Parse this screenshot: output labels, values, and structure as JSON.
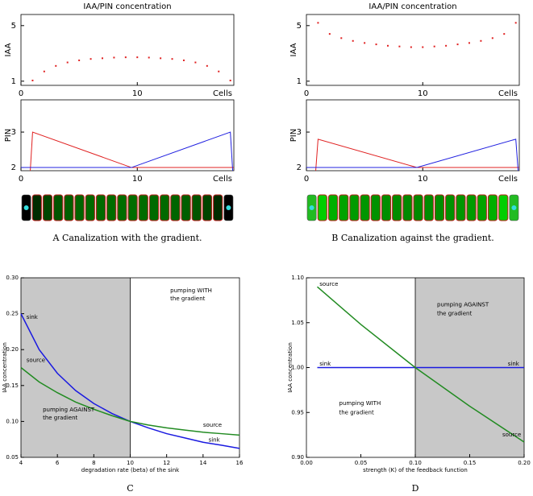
{
  "chart_data": [
    {
      "type": "scatter",
      "title": "IAA/PIN concentration",
      "ylabel": "IAA",
      "xlabel": "Cells",
      "caption": "A Canalization with the gradient.",
      "color": "#e02020",
      "x": [
        1,
        2,
        3,
        4,
        5,
        6,
        7,
        8,
        9,
        10,
        11,
        12,
        13,
        14,
        15,
        16,
        17,
        18
      ],
      "values": [
        1.05,
        1.7,
        2.1,
        2.35,
        2.5,
        2.6,
        2.65,
        2.7,
        2.72,
        2.72,
        2.7,
        2.65,
        2.6,
        2.5,
        2.35,
        2.1,
        1.7,
        1.05
      ],
      "xlim": [
        0,
        18.3
      ],
      "ylim": [
        0.7,
        5.8
      ],
      "xticks": [
        0,
        10
      ],
      "yticks": [
        1,
        5
      ]
    },
    {
      "type": "line",
      "ylabel": "PIN",
      "xlabel": "Cells",
      "series": [
        {
          "color": "#e02020",
          "x": [
            0.8,
            1,
            9.5,
            18.3
          ],
          "values": [
            1.91,
            3,
            2,
            2
          ]
        },
        {
          "color": "#2020e0",
          "x": [
            0,
            9.5,
            18,
            18.2
          ],
          "values": [
            2,
            2,
            3,
            1.91
          ]
        }
      ],
      "xlim": [
        0,
        18.3
      ],
      "ylim": [
        1.91,
        3.91
      ],
      "xticks": [
        0,
        10
      ],
      "yticks": [
        2,
        3
      ]
    },
    {
      "type": "scatter",
      "title": "IAA/PIN concentration",
      "ylabel": "IAA",
      "xlabel": "Cells",
      "caption": "B Canalization against the gradient.",
      "color": "#e02020",
      "x": [
        1,
        2,
        3,
        4,
        5,
        6,
        7,
        8,
        9,
        10,
        11,
        12,
        13,
        14,
        15,
        16,
        17,
        18
      ],
      "values": [
        5.2,
        4.4,
        4.1,
        3.9,
        3.75,
        3.65,
        3.55,
        3.5,
        3.45,
        3.45,
        3.5,
        3.55,
        3.65,
        3.75,
        3.9,
        4.1,
        4.4,
        5.2
      ],
      "xlim": [
        0,
        18.3
      ],
      "ylim": [
        0.7,
        5.8
      ],
      "xticks": [
        0,
        10
      ],
      "yticks": [
        1,
        5
      ]
    },
    {
      "type": "line",
      "ylabel": "PIN",
      "xlabel": "Cells",
      "series": [
        {
          "color": "#e02020",
          "x": [
            0.8,
            1,
            9.5,
            18.3
          ],
          "values": [
            1.91,
            2.8,
            2,
            2
          ]
        },
        {
          "color": "#2020e0",
          "x": [
            0,
            9.5,
            18,
            18.2
          ],
          "values": [
            2,
            2,
            2.8,
            1.91
          ]
        }
      ],
      "xlim": [
        0,
        18.3
      ],
      "ylim": [
        1.91,
        3.91
      ],
      "xticks": [
        0,
        10
      ],
      "yticks": [
        2,
        3
      ]
    },
    {
      "type": "line",
      "xlabel": "degradation rate (beta) of the sink",
      "ylabel": "IAA concentration",
      "caption": "C",
      "x": [
        4,
        5,
        6,
        7,
        8,
        9,
        10,
        11,
        12,
        13,
        14,
        15,
        16
      ],
      "series": [
        {
          "color": "#1a1ae0",
          "values": [
            0.25,
            0.2,
            0.167,
            0.143,
            0.125,
            0.111,
            0.1,
            0.091,
            0.083,
            0.077,
            0.071,
            0.067,
            0.0625
          ]
        },
        {
          "color": "#228b22",
          "values": [
            0.175,
            0.155,
            0.14,
            0.127,
            0.117,
            0.108,
            0.1,
            0.095,
            0.091,
            0.088,
            0.085,
            0.083,
            0.081
          ]
        }
      ],
      "shade": [
        4,
        10
      ],
      "annotations": [
        "sink",
        "source",
        "pumping WITH",
        "the gradient",
        "pumping AGAINST",
        "the gradient",
        "source",
        "sink"
      ],
      "xlim": [
        4,
        16
      ],
      "ylim": [
        0.05,
        0.3
      ],
      "xticks": [
        4,
        6,
        8,
        10,
        12,
        14,
        16
      ],
      "yticks": [
        {
          "value": 0.05,
          "label": "0.05"
        },
        {
          "value": 0.1,
          "label": "0.10"
        },
        {
          "value": 0.15,
          "label": "0.15"
        },
        {
          "value": 0.2,
          "label": "0.20"
        },
        {
          "value": 0.25,
          "label": "0.25"
        },
        {
          "value": 0.3,
          "label": "0.30"
        }
      ]
    },
    {
      "type": "line",
      "xlabel": "strength (K) of the feedback function",
      "ylabel": "IAA concentration",
      "caption": "D",
      "x": [
        0.01,
        0.05,
        0.1,
        0.15,
        0.2
      ],
      "series": [
        {
          "color": "#1a1ae0",
          "values": [
            1,
            1,
            1,
            1,
            1
          ]
        },
        {
          "color": "#228b22",
          "values": [
            1.09,
            1.048,
            1.0,
            0.957,
            0.917
          ]
        }
      ],
      "shade": [
        0.1,
        0.2
      ],
      "annotations": [
        "source",
        "sink",
        "sink",
        "pumping AGAINST",
        "the gradient",
        "pumping WITH",
        "the gradient",
        "source"
      ],
      "xlim": [
        0,
        0.2
      ],
      "ylim": [
        0.9,
        1.1
      ],
      "xticks": [
        {
          "value": 0,
          "label": "0.00"
        },
        {
          "value": 0.05,
          "label": "0.05"
        },
        {
          "value": 0.1,
          "label": "0.10"
        },
        {
          "value": 0.15,
          "label": "0.15"
        },
        {
          "value": 0.2,
          "label": "0.20"
        }
      ],
      "yticks": [
        {
          "value": 0.9,
          "label": "0.90"
        },
        {
          "value": 0.95,
          "label": "0.95"
        },
        {
          "value": 1.0,
          "label": "1.00"
        },
        {
          "value": 1.05,
          "label": "1.05"
        },
        {
          "value": 1.1,
          "label": "1.10"
        }
      ]
    }
  ]
}
